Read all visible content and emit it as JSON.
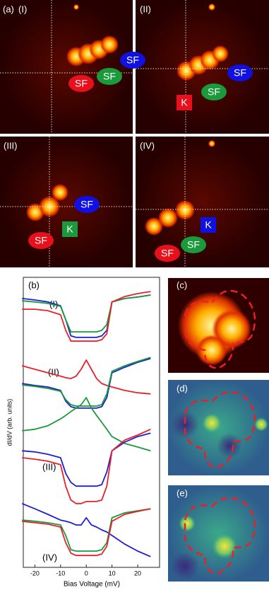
{
  "panel_a": {
    "label": "(a)",
    "images": [
      {
        "label": "(I)",
        "markers": [
          "SF",
          "SF",
          "SF"
        ]
      },
      {
        "label": "(II)",
        "markers": [
          "SF",
          "SF",
          "K"
        ]
      },
      {
        "label": "(III)",
        "markers": [
          "SF",
          "K",
          "SF"
        ]
      },
      {
        "label": "(IV)",
        "markers": [
          "K",
          "SF",
          "SF"
        ]
      }
    ]
  },
  "chart_data": {
    "type": "line",
    "panel_label": "(b)",
    "x_label": "Bias Voltage (mV)",
    "y_label": "dI/dV (arb. units)",
    "group_labels": [
      "(I)",
      "(II)",
      "(III)",
      "(IV)"
    ],
    "x": [
      -25,
      -20,
      -15,
      -10,
      -8,
      -6,
      -4,
      -2,
      0,
      2,
      4,
      6,
      8,
      10,
      15,
      20,
      25
    ],
    "xlim": [
      -24.5,
      28.5
    ],
    "xticks": [
      -20,
      -10,
      0,
      10,
      20
    ],
    "ylim": [
      0,
      100
    ],
    "series": [
      {
        "color": "#1f1fd0",
        "values": [
          92.7,
          92.2,
          91.5,
          90.2,
          85.4,
          79.8,
          79.3,
          79.3,
          79.3,
          79.3,
          79.3,
          79.8,
          81.7,
          91.5,
          92.7,
          93.2,
          93.9
        ]
      },
      {
        "color": "#1a9a3a",
        "values": [
          91.9,
          91.5,
          91.0,
          90.0,
          85.4,
          81.2,
          81.2,
          81.2,
          81.2,
          81.2,
          81.2,
          81.7,
          83.7,
          91.5,
          92.7,
          93.2,
          93.9
        ]
      },
      {
        "color": "#e8202a",
        "values": [
          89.0,
          89.0,
          88.5,
          87.1,
          81.7,
          78.0,
          78.0,
          78.0,
          78.0,
          78.0,
          78.0,
          78.5,
          80.5,
          91.5,
          93.4,
          94.4,
          95.1
        ]
      },
      {
        "color": "#e8202a",
        "values": [
          69.5,
          68.3,
          67.1,
          65.9,
          65.4,
          65.1,
          65.9,
          68.3,
          71.5,
          68.3,
          65.1,
          63.4,
          62.7,
          62.2,
          61.0,
          60.2,
          59.8
        ]
      },
      {
        "color": "#1f1fd0",
        "values": [
          63.4,
          62.7,
          62.2,
          61.0,
          57.3,
          55.4,
          54.9,
          54.9,
          54.9,
          54.9,
          54.9,
          55.4,
          58.5,
          67.1,
          69.0,
          70.7,
          72.0
        ]
      },
      {
        "color": "#1a9a3a",
        "values": [
          62.9,
          62.4,
          61.7,
          60.7,
          57.8,
          56.1,
          55.6,
          55.6,
          55.6,
          55.6,
          55.6,
          56.1,
          59.8,
          67.6,
          69.5,
          71.0,
          72.4
        ]
      },
      {
        "color": "#1a9a3a",
        "values": [
          47.1,
          47.6,
          48.8,
          51.2,
          52.4,
          53.7,
          54.9,
          56.1,
          58.5,
          54.9,
          52.4,
          50.0,
          47.6,
          45.1,
          42.7,
          41.5,
          40.2
        ]
      },
      {
        "color": "#1f1fd0",
        "values": [
          40.2,
          39.8,
          39.0,
          37.8,
          32.4,
          29.3,
          28.0,
          28.0,
          28.0,
          28.0,
          28.0,
          28.5,
          32.9,
          40.2,
          43.2,
          45.1,
          46.3
        ]
      },
      {
        "color": "#e8202a",
        "values": [
          37.8,
          37.3,
          36.6,
          35.4,
          28.0,
          23.2,
          22.0,
          22.0,
          22.7,
          22.7,
          22.7,
          23.2,
          28.0,
          40.2,
          43.9,
          45.6,
          47.6
        ]
      },
      {
        "color": "#1f1fd0",
        "values": [
          22.0,
          20.2,
          18.3,
          16.3,
          15.9,
          15.4,
          14.6,
          14.6,
          17.1,
          14.6,
          13.9,
          12.9,
          12.2,
          11.0,
          8.0,
          5.6,
          3.7
        ]
      },
      {
        "color": "#1a9a3a",
        "values": [
          16.3,
          15.9,
          15.4,
          14.6,
          11.0,
          6.1,
          5.6,
          5.6,
          5.6,
          5.6,
          5.6,
          6.1,
          8.5,
          17.1,
          18.8,
          19.5,
          20.2
        ]
      },
      {
        "color": "#e8202a",
        "values": [
          15.9,
          15.4,
          14.9,
          13.9,
          8.5,
          4.9,
          4.1,
          4.1,
          4.1,
          4.1,
          4.1,
          4.6,
          7.3,
          15.9,
          18.3,
          19.3,
          20.2
        ]
      }
    ]
  },
  "panel_c": {
    "label": "(c)"
  },
  "panel_d": {
    "label": "(d)"
  },
  "panel_e": {
    "label": "(e)"
  }
}
